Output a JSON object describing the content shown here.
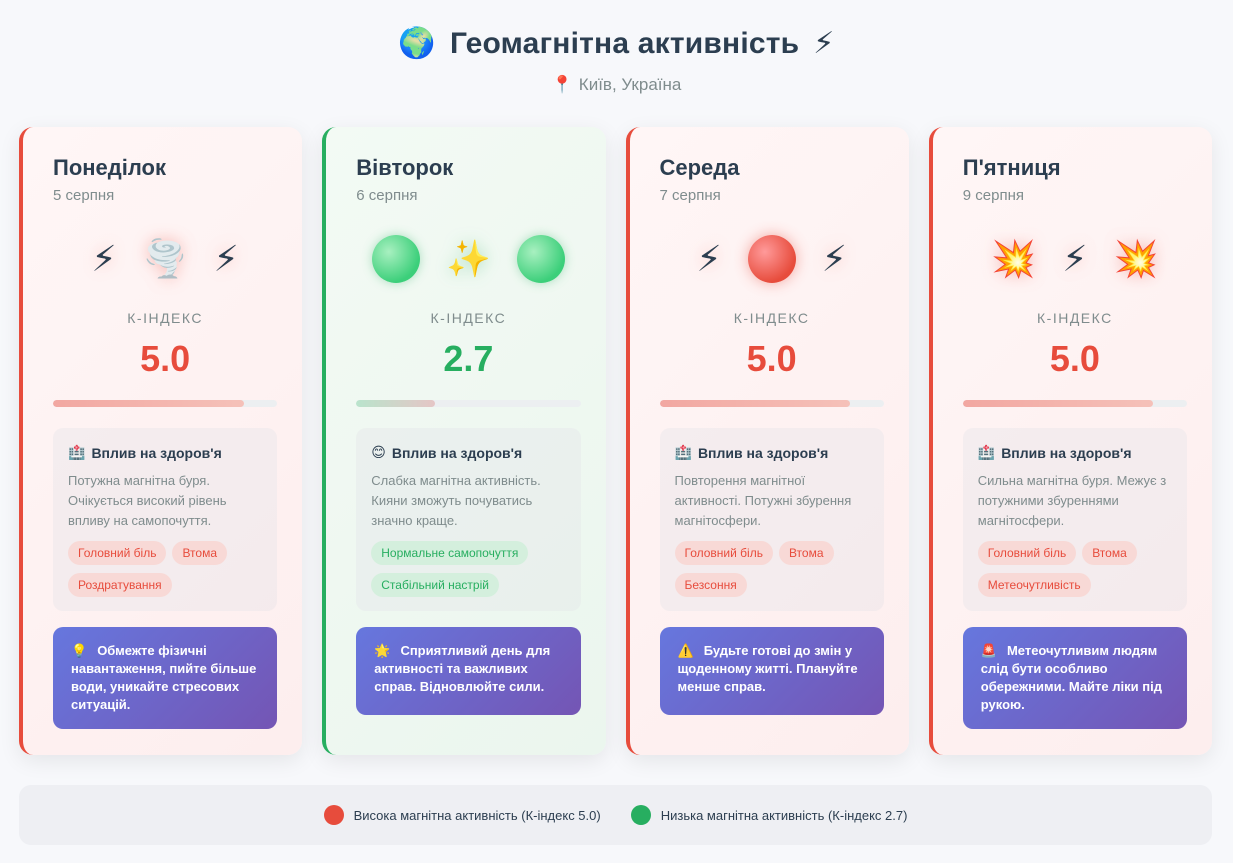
{
  "header": {
    "globe_icon": "🌍",
    "title": "Геомагнітна активність",
    "bolt_icon": "⚡",
    "pin_icon": "📍",
    "location": "Київ, Україна"
  },
  "k_label": "К-ІНДЕКС",
  "health_label": "Вплив на здоров'я",
  "colors": {
    "high": "#e74c3c",
    "low": "#27ae60",
    "accent": "#6677de"
  },
  "cards": [
    {
      "level": "high",
      "day": "Понеділок",
      "date": "5 серпня",
      "icons": [
        "⚡",
        "🌪️",
        "⚡"
      ],
      "k_index": "5.0",
      "bar_fraction": 0.85,
      "health_icon": "🏥",
      "health_text": "Потужна магнітна буря. Очікується високий рівень впливу на самопочуття.",
      "tags": [
        "Головний біль",
        "Втома",
        "Роздратування"
      ],
      "advice_icon": "💡",
      "advice": "Обмежте фізичні навантаження, пийте більше води, уникайте стресових ситуацій."
    },
    {
      "level": "low",
      "day": "Вівторок",
      "date": "6 серпня",
      "icons": [
        "orb",
        "✨",
        "orb"
      ],
      "k_index": "2.7",
      "bar_fraction": 0.35,
      "health_icon": "😊",
      "health_text": "Слабка магнітна активність. Кияни зможуть почуватись значно краще.",
      "tags": [
        "Нормальне самопочуття",
        "Стабільний настрій"
      ],
      "advice_icon": "🌟",
      "advice": "Сприятливий день для активності та важливих справ. Відновлюйте сили."
    },
    {
      "level": "high",
      "day": "Середа",
      "date": "7 серпня",
      "icons": [
        "⚡",
        "orb",
        "⚡"
      ],
      "k_index": "5.0",
      "bar_fraction": 0.85,
      "health_icon": "🏥",
      "health_text": "Повторення магнітної активності. Потужні збурення магнітосфери.",
      "tags": [
        "Головний біль",
        "Втома",
        "Безсоння"
      ],
      "advice_icon": "⚠️",
      "advice": "Будьте готові до змін у щоденному житті. Плануйте менше справ."
    },
    {
      "level": "high",
      "day": "П'ятниця",
      "date": "9 серпня",
      "icons": [
        "💥",
        "⚡",
        "💥"
      ],
      "k_index": "5.0",
      "bar_fraction": 0.85,
      "health_icon": "🏥",
      "health_text": "Сильна магнітна буря. Межує з потужними збуреннями магнітосфери.",
      "tags": [
        "Головний біль",
        "Втома",
        "Метеочутливість"
      ],
      "advice_icon": "🚨",
      "advice": "Метеочутливим людям слід бути особливо обережними. Майте ліки під рукою."
    }
  ],
  "legend": [
    {
      "color": "#e74c3c",
      "label": "Висока магнітна активність (К-індекс 5.0)"
    },
    {
      "color": "#27ae60",
      "label": "Низька магнітна активність (К-індекс 2.7)"
    }
  ]
}
